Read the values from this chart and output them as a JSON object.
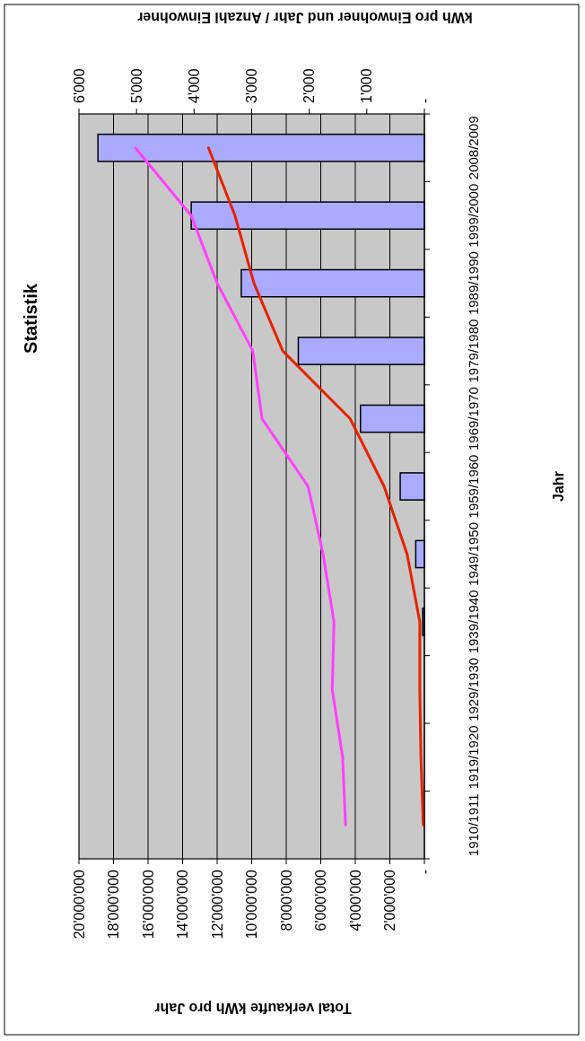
{
  "chart_data": {
    "type": "bar",
    "orientation": "horizontal",
    "title": "Statistik",
    "ylabel": "Jahr",
    "xlabel": "Total verkaufte kWh pro Jahr",
    "x2label": "kWh pro Einwohner und Jahr / Anzahl Einwohner",
    "categories": [
      "2008/2009",
      "1999/2000",
      "1989/1990",
      "1979/1980",
      "1969/1970",
      "1959/1960",
      "1949/1950",
      "1939/1940",
      "1929/1930",
      "1919/1920",
      "1910/1911"
    ],
    "series": [
      {
        "color": "#aaaaff",
        "values": [
          18900000,
          13500000,
          10600000,
          7300000,
          3700000,
          1400000,
          500000,
          100000,
          null,
          null,
          null
        ]
      },
      {
        "type": "line",
        "axis": "x2",
        "color": "#e62200",
        "values": [
          3750,
          3290,
          2960,
          2460,
          1290,
          700,
          300,
          80,
          80,
          60,
          20
        ]
      },
      {
        "type": "line",
        "axis": "x2",
        "color": "#ff40ff",
        "values": [
          5020,
          4050,
          3600,
          2980,
          2820,
          2020,
          1760,
          1570,
          1600,
          1420,
          1370
        ]
      }
    ],
    "xlim": [
      20000000,
      0
    ],
    "xticks": [
      {
        "value": 0,
        "label": "-"
      },
      {
        "value": 2000000,
        "label": "2'000'000"
      },
      {
        "value": 4000000,
        "label": "4'000'000"
      },
      {
        "value": 6000000,
        "label": "6'000'000"
      },
      {
        "value": 8000000,
        "label": "8'000'000"
      },
      {
        "value": 10000000,
        "label": "10'000'000"
      },
      {
        "value": 12000000,
        "label": "12'000'000"
      },
      {
        "value": 14000000,
        "label": "14'000'000"
      },
      {
        "value": 16000000,
        "label": "16'000'000"
      },
      {
        "value": 18000000,
        "label": "18'000'000"
      },
      {
        "value": 20000000,
        "label": "20'000'000"
      }
    ],
    "x2lim": [
      6000,
      0
    ],
    "x2ticks": [
      {
        "value": 0,
        "label": "-"
      },
      {
        "value": 1000,
        "label": "1'000"
      },
      {
        "value": 2000,
        "label": "2'000"
      },
      {
        "value": 3000,
        "label": "3'000"
      },
      {
        "value": 4000,
        "label": "4'000"
      },
      {
        "value": 5000,
        "label": "5'000"
      },
      {
        "value": 6000,
        "label": "6'000"
      }
    ],
    "grid": "x",
    "marker": "none",
    "line_style": "solid"
  }
}
